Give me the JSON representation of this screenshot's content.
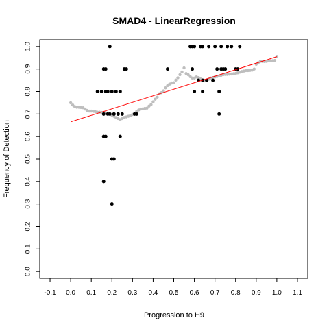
{
  "chart_data": {
    "type": "scatter",
    "title": "SMAD4 - LinearRegression",
    "xlabel": "Progression to H9",
    "ylabel": "Frequency of Detection",
    "xlim": [
      -0.15,
      1.15
    ],
    "ylim": [
      -0.03,
      1.03
    ],
    "x_ticks": [
      -0.1,
      0.0,
      0.1,
      0.2,
      0.3,
      0.4,
      0.5,
      0.6,
      0.7,
      0.8,
      0.9,
      1.0,
      1.1
    ],
    "x_tick_labels": [
      "-0.1",
      "0.0",
      "0.1",
      "0.2",
      "0.3",
      "0.4",
      "0.5",
      "0.6",
      "0.7",
      "0.8",
      "0.9",
      "1.0",
      "1.1"
    ],
    "y_ticks": [
      0.0,
      0.1,
      0.2,
      0.3,
      0.4,
      0.5,
      0.6,
      0.7,
      0.8,
      0.9,
      1.0
    ],
    "y_tick_labels": [
      "0.0",
      "0.1",
      "0.2",
      "0.3",
      "0.4",
      "0.5",
      "0.6",
      "0.7",
      "0.8",
      "0.9",
      "1.0"
    ],
    "grid": false,
    "series": [
      {
        "role": "smoothed",
        "color": "#bebebe",
        "x": [
          0.0,
          0.01,
          0.02,
          0.03,
          0.04,
          0.05,
          0.06,
          0.07,
          0.08,
          0.09,
          0.1,
          0.11,
          0.12,
          0.13,
          0.14,
          0.15,
          0.16,
          0.17,
          0.18,
          0.19,
          0.2,
          0.21,
          0.22,
          0.23,
          0.24,
          0.25,
          0.26,
          0.27,
          0.28,
          0.29,
          0.3,
          0.31,
          0.32,
          0.33,
          0.34,
          0.35,
          0.36,
          0.37,
          0.38,
          0.39,
          0.4,
          0.41,
          0.42,
          0.43,
          0.44,
          0.45,
          0.46,
          0.47,
          0.48,
          0.49,
          0.5,
          0.51,
          0.52,
          0.53,
          0.54,
          0.55,
          0.56,
          0.57,
          0.58,
          0.59,
          0.6,
          0.61,
          0.62,
          0.63,
          0.64,
          0.65,
          0.66,
          0.67,
          0.68,
          0.69,
          0.7,
          0.71,
          0.72,
          0.73,
          0.74,
          0.75,
          0.76,
          0.77,
          0.78,
          0.79,
          0.8,
          0.81,
          0.82,
          0.83,
          0.84,
          0.85,
          0.86,
          0.87,
          0.88,
          0.89,
          0.9,
          0.91,
          0.92,
          0.93,
          0.94,
          0.95,
          0.96,
          0.97,
          0.98,
          0.99,
          1.0
        ],
        "y": [
          0.75,
          0.74,
          0.733,
          0.73,
          0.73,
          0.729,
          0.728,
          0.722,
          0.716,
          0.713,
          0.713,
          0.712,
          0.71,
          0.708,
          0.708,
          0.707,
          0.707,
          0.705,
          0.702,
          0.7,
          0.695,
          0.69,
          0.684,
          0.68,
          0.675,
          0.68,
          0.685,
          0.687,
          0.69,
          0.694,
          0.698,
          0.703,
          0.711,
          0.718,
          0.722,
          0.723,
          0.725,
          0.726,
          0.735,
          0.742,
          0.754,
          0.766,
          0.775,
          0.79,
          0.795,
          0.803,
          0.816,
          0.826,
          0.833,
          0.838,
          0.839,
          0.851,
          0.861,
          0.875,
          0.887,
          0.905,
          0.88,
          0.875,
          0.866,
          0.86,
          0.86,
          0.865,
          0.862,
          0.856,
          0.852,
          0.849,
          0.85,
          0.855,
          0.86,
          0.862,
          0.865,
          0.867,
          0.869,
          0.872,
          0.875,
          0.876,
          0.876,
          0.877,
          0.878,
          0.879,
          0.88,
          0.883,
          0.886,
          0.889,
          0.891,
          0.893,
          0.893,
          0.894,
          0.895,
          0.9,
          0.921,
          0.928,
          0.934,
          0.934,
          0.933,
          0.934,
          0.936,
          0.937,
          0.937,
          0.938,
          0.956
        ]
      },
      {
        "role": "observed",
        "color": "#000000",
        "x": [
          0.13,
          0.15,
          0.16,
          0.17,
          0.18,
          0.19,
          0.2,
          0.21,
          0.22,
          0.23,
          0.24,
          0.25,
          0.26,
          0.27,
          0.19,
          0.16,
          0.17,
          0.18,
          0.21,
          0.23,
          0.16,
          0.17,
          0.24,
          0.2,
          0.21,
          0.16,
          0.2,
          0.47,
          0.31,
          0.32,
          0.58,
          0.59,
          0.6,
          0.63,
          0.64,
          0.67,
          0.7,
          0.73,
          0.76,
          0.78,
          0.82,
          0.71,
          0.73,
          0.75,
          0.8,
          0.59,
          0.62,
          0.66,
          0.69,
          0.72,
          0.6,
          0.64,
          0.74,
          0.81,
          0.72,
          0.64
        ],
        "y": [
          0.8,
          0.8,
          0.7,
          0.8,
          0.8,
          0.7,
          0.8,
          0.7,
          0.8,
          0.7,
          0.8,
          0.7,
          0.9,
          0.9,
          1.0,
          0.9,
          0.9,
          0.7,
          0.7,
          0.7,
          0.6,
          0.6,
          0.6,
          0.5,
          0.5,
          0.4,
          0.3,
          0.9,
          0.7,
          0.7,
          1.0,
          1.0,
          1.0,
          1.0,
          1.0,
          1.0,
          1.0,
          1.0,
          1.0,
          1.0,
          1.0,
          0.9,
          0.9,
          0.9,
          0.9,
          0.9,
          0.85,
          0.85,
          0.85,
          0.8,
          0.8,
          0.8,
          0.9,
          0.9,
          0.7,
          0.85
        ]
      },
      {
        "role": "regression",
        "color": "#ff0000",
        "x": [
          0.0,
          1.0
        ],
        "y": [
          0.665,
          0.955
        ]
      }
    ]
  }
}
